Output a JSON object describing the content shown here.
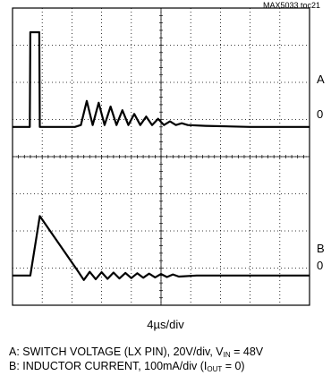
{
  "figure_id": "MAX5033 toc21",
  "chart_data": {
    "type": "line",
    "grid": true,
    "xlabel": "4µs/div",
    "series": [
      {
        "channel": "A",
        "ref_label": "0",
        "legend_main": "A: SWITCH VOLTAGE (LX PIN), 20V/div, V",
        "legend_sub": "IN",
        "legend_end": " = 48V",
        "x_div": [
          0,
          0.58,
          0.6,
          0.9,
          0.92,
          2.1,
          2.3,
          2.5,
          2.7,
          2.9,
          3.1,
          3.3,
          3.5,
          3.7,
          3.9,
          4.1,
          4.3,
          4.5,
          4.7,
          4.9,
          5.1,
          5.3,
          5.5,
          5.7,
          5.9,
          6.5,
          8,
          10
        ],
        "y_div": [
          0,
          0,
          2.55,
          2.55,
          0,
          0,
          0.05,
          0.7,
          0.05,
          0.65,
          0.05,
          0.55,
          0.05,
          0.45,
          0.05,
          0.35,
          0.05,
          0.28,
          0.05,
          0.22,
          0.05,
          0.15,
          0.05,
          0.1,
          0.05,
          0.03,
          0,
          0
        ]
      },
      {
        "channel": "B",
        "ref_label": "0",
        "legend_main": "B: INDUCTOR CURRENT, 100mA/div (I",
        "legend_sub": "OUT",
        "legend_end": " = 0)",
        "x_div": [
          0,
          0.6,
          0.92,
          2.2,
          2.4,
          2.6,
          2.8,
          3.0,
          3.2,
          3.4,
          3.6,
          3.8,
          4.0,
          4.2,
          4.4,
          4.6,
          4.8,
          5.0,
          5.2,
          5.4,
          5.6,
          6.2,
          8,
          10
        ],
        "y_div": [
          0,
          0,
          1.6,
          0.12,
          -0.12,
          0.1,
          -0.1,
          0.09,
          -0.09,
          0.08,
          -0.08,
          0.07,
          -0.07,
          0.06,
          -0.06,
          0.05,
          -0.05,
          0.04,
          -0.04,
          0.03,
          -0.03,
          0,
          0,
          0
        ]
      }
    ]
  }
}
